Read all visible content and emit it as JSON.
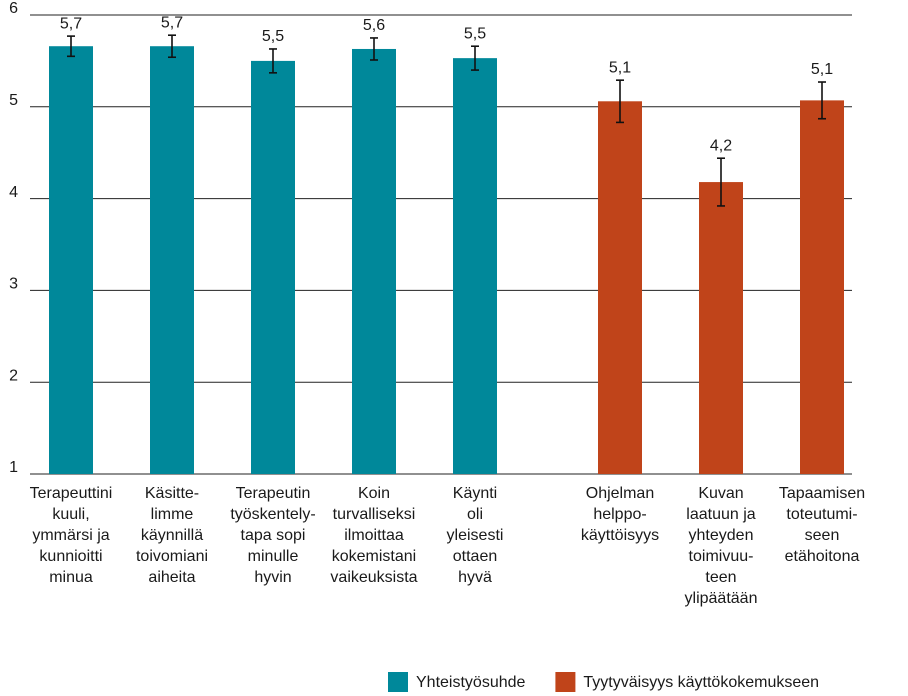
{
  "chart_data": {
    "type": "bar",
    "categories": [
      [
        "Terapeuttini",
        "kuuli,",
        "ymmärsi ja",
        "kunnioitti",
        "minua"
      ],
      [
        "Käsitte-",
        "limme",
        "käynnillä",
        "toivomiani",
        "aiheita"
      ],
      [
        "Terapeutin",
        "työskentely-",
        "tapa sopi",
        "minulle",
        "hyvin"
      ],
      [
        "Koin",
        "turvalliseksi",
        "ilmoittaa",
        "kokemistani",
        "vaikeuksista"
      ],
      [
        "Käynti",
        "oli",
        "yleisesti",
        "ottaen",
        "hyvä"
      ],
      [
        "Ohjelman",
        "helppo-",
        "käyttöisyys"
      ],
      [
        "Kuvan",
        "laatuun ja",
        "yhteyden",
        "toimivuu-",
        "teen",
        "ylipäätään"
      ],
      [
        "Tapaamisen",
        "toteutumi-",
        "seen",
        "etähoitona"
      ]
    ],
    "series": [
      {
        "name": "Yhteistyösuhde",
        "color": "#00889a",
        "values": [
          5.66,
          5.66,
          5.5,
          5.63,
          5.53,
          null,
          null,
          null
        ],
        "value_labels": [
          "5,7",
          "5,7",
          "5,5",
          "5,6",
          "5,5",
          null,
          null,
          null
        ],
        "errors": [
          0.11,
          0.12,
          0.13,
          0.12,
          0.13,
          null,
          null,
          null
        ]
      },
      {
        "name": "Tyytyväisyys käyttökokemukseen",
        "color": "#c0441a",
        "values": [
          null,
          null,
          null,
          null,
          null,
          5.06,
          4.18,
          5.07
        ],
        "value_labels": [
          null,
          null,
          null,
          null,
          null,
          "5,1",
          "4,2",
          "5,1"
        ],
        "errors": [
          null,
          null,
          null,
          null,
          null,
          0.23,
          0.26,
          0.2
        ]
      }
    ],
    "ylim": [
      1,
      6
    ],
    "yticks": [
      1,
      2,
      3,
      4,
      5,
      6
    ],
    "grid": true,
    "legend": "bottom"
  }
}
